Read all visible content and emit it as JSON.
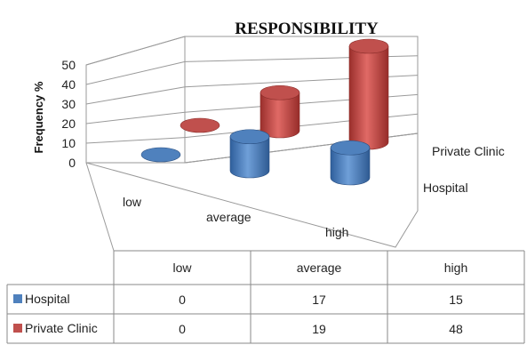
{
  "chart_data": {
    "type": "bar",
    "title": "RESPONSIBILITY",
    "ylabel": "Frequency %",
    "ylim": [
      0,
      50
    ],
    "yticks": [
      0,
      10,
      20,
      30,
      40,
      50
    ],
    "categories": [
      "low",
      "average",
      "high"
    ],
    "series": [
      {
        "name": "Hospital",
        "values": [
          0,
          17,
          15
        ],
        "color": "#4f81bd"
      },
      {
        "name": "Private Clinic",
        "values": [
          0,
          19,
          48
        ],
        "color": "#c0504d"
      }
    ],
    "grid": true,
    "data_table": true
  }
}
